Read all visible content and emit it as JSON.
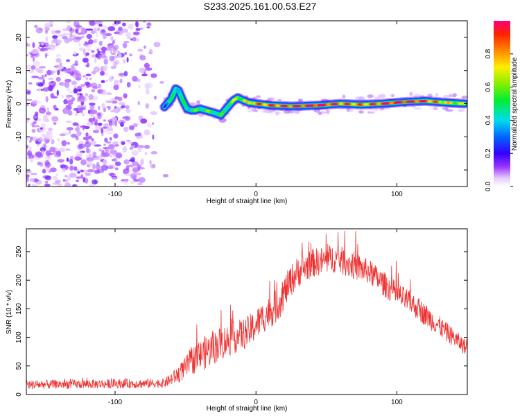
{
  "title": "S233.2025.161.00.53.E27",
  "colors": {
    "snr_line": "#ee3333",
    "frame": "#000000"
  },
  "chart_data": [
    {
      "type": "heatmap",
      "xlabel": "Height of straight line (km)",
      "ylabel": "Frequency (Hz)",
      "xlim": [
        -163,
        150
      ],
      "ylim": [
        -25,
        25
      ],
      "xticks": [
        -100,
        0,
        100
      ],
      "yticks": [
        -20,
        -10,
        0,
        10,
        20
      ],
      "colorbar": {
        "label": "Normalized spectral amplitude",
        "range": [
          0,
          1
        ],
        "ticks": [
          "0.0",
          "0.2",
          "0.4",
          "0.6",
          "0.8"
        ],
        "colormap": "rainbow (white-violet-blue-cyan-green-yellow-red-magenta)"
      },
      "noise_region_x": [
        -163,
        -63
      ],
      "ridge": {
        "x": [
          -65,
          -60,
          -57,
          -55,
          -52,
          -49,
          -46,
          -43,
          -40,
          -36,
          -32,
          -28,
          -25,
          -22,
          -19,
          -16,
          -13,
          -10,
          -5,
          0,
          10,
          25,
          45,
          60,
          75,
          90,
          105,
          120,
          135,
          148
        ],
        "frequency_hz": [
          -1.0,
          1.5,
          4.5,
          4.0,
          1.0,
          -1.5,
          -2.0,
          -2.0,
          -1.5,
          -2.0,
          -2.5,
          -3.0,
          -3.5,
          -2.0,
          -0.5,
          1.0,
          1.8,
          1.2,
          0.3,
          0.0,
          -0.5,
          -0.8,
          -0.5,
          0.0,
          -0.3,
          0.0,
          0.5,
          0.8,
          0.3,
          0.0
        ],
        "amplitude": [
          0.3,
          0.4,
          0.5,
          0.45,
          0.4,
          0.45,
          0.5,
          0.5,
          0.5,
          0.55,
          0.5,
          0.5,
          0.45,
          0.5,
          0.55,
          0.6,
          0.65,
          0.6,
          0.7,
          0.8,
          0.85,
          0.9,
          0.95,
          0.85,
          0.8,
          0.9,
          0.95,
          0.9,
          0.7,
          0.6
        ]
      }
    },
    {
      "type": "line",
      "xlabel": "Height of straight line (km)",
      "ylabel": "SNR (10 * v/v)",
      "xlim": [
        -163,
        150
      ],
      "ylim": [
        0,
        290
      ],
      "xticks": [
        -100,
        0,
        100
      ],
      "yticks": [
        0,
        50,
        100,
        150,
        200,
        250
      ],
      "series": [
        {
          "envelope_x": [
            -163,
            -140,
            -120,
            -100,
            -80,
            -65,
            -55,
            -45,
            -35,
            -25,
            -15,
            -5,
            5,
            15,
            25,
            30,
            40,
            50,
            55,
            60,
            70,
            80,
            90,
            100,
            110,
            120,
            130,
            140,
            150
          ],
          "envelope_mean": [
            17,
            18,
            18,
            19,
            19,
            20,
            35,
            60,
            75,
            90,
            100,
            110,
            135,
            155,
            200,
            215,
            230,
            235,
            238,
            235,
            225,
            215,
            195,
            175,
            160,
            140,
            120,
            100,
            80
          ],
          "noise_amplitude": [
            8,
            8,
            8,
            8,
            8,
            8,
            15,
            25,
            30,
            30,
            28,
            28,
            28,
            30,
            28,
            28,
            25,
            25,
            25,
            25,
            25,
            22,
            22,
            22,
            20,
            20,
            18,
            16,
            14
          ]
        }
      ]
    }
  ]
}
